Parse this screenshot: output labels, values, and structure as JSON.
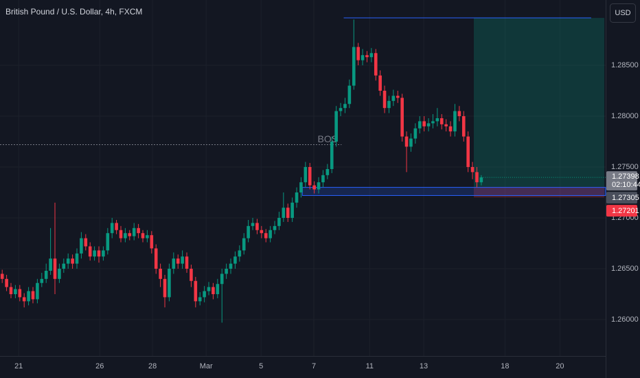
{
  "chart_data": {
    "type": "candlestick",
    "title": "British Pound / U.S. Dollar, 4h, FXCM",
    "currency": "USD",
    "up_color": "#089981",
    "down_color": "#f23645",
    "xlim": [
      -0.5,
      137.3
    ],
    "ylim": [
      1.25642,
      1.29142
    ],
    "grid": true,
    "yticks": [
      {
        "value": 1.26,
        "label": "1.26000"
      },
      {
        "value": 1.265,
        "label": "1.26500"
      },
      {
        "value": 1.27,
        "label": "1.27000"
      },
      {
        "value": 1.275,
        "label": "1.27500"
      },
      {
        "value": 1.28,
        "label": "1.28000"
      },
      {
        "value": 1.285,
        "label": "1.28500"
      }
    ],
    "xticks": [
      {
        "value": 3.75,
        "label": "21"
      },
      {
        "value": 22.2,
        "label": "26"
      },
      {
        "value": 34.2,
        "label": "28"
      },
      {
        "value": 46.4,
        "label": "Mar"
      },
      {
        "value": 58.9,
        "label": "5"
      },
      {
        "value": 70.9,
        "label": "7"
      },
      {
        "value": 83.6,
        "label": "11"
      },
      {
        "value": 95.9,
        "label": "13"
      },
      {
        "value": 114.4,
        "label": "18"
      },
      {
        "value": 126.9,
        "label": "20"
      }
    ],
    "open": [
      1.2645,
      1.264,
      1.2632,
      1.2625,
      1.263,
      1.2622,
      1.2618,
      1.2628,
      1.262,
      1.2636,
      1.264,
      1.2648,
      1.266,
      1.264,
      1.265,
      1.2655,
      1.266,
      1.2655,
      1.2665,
      1.268,
      1.2672,
      1.2662,
      1.2668,
      1.2662,
      1.2668,
      1.2685,
      1.2695,
      1.2688,
      1.268,
      1.2685,
      1.2682,
      1.269,
      1.2685,
      1.268,
      1.2683,
      1.267,
      1.265,
      1.264,
      1.2622,
      1.265,
      1.266,
      1.2655,
      1.2662,
      1.265,
      1.2638,
      1.2618,
      1.2622,
      1.2628,
      1.2632,
      1.2625,
      1.2635,
      1.2645,
      1.265,
      1.2655,
      1.2662,
      1.2668,
      1.268,
      1.2692,
      1.2695,
      1.2688,
      1.2685,
      1.268,
      1.2688,
      1.2692,
      1.27,
      1.271,
      1.27,
      1.2715,
      1.2725,
      1.2735,
      1.275,
      1.2732,
      1.2728,
      1.2735,
      1.2742,
      1.2748,
      1.2775,
      1.2805,
      1.2808,
      1.2812,
      1.283,
      1.2868,
      1.2855,
      1.286,
      1.2858,
      1.2862,
      1.284,
      1.2825,
      1.2808,
      1.2815,
      1.282,
      1.2818,
      1.278,
      1.277,
      1.2778,
      1.2788,
      1.2795,
      1.279,
      1.2793,
      1.2795,
      1.2798,
      1.2792,
      1.279,
      1.2785,
      1.2805,
      1.28,
      1.278,
      1.275,
      1.2745,
      1.2735
    ],
    "high": [
      1.2649,
      1.2644,
      1.2636,
      1.2634,
      1.2634,
      1.2626,
      1.2632,
      1.2632,
      1.264,
      1.2646,
      1.2655,
      1.269,
      1.2715,
      1.2655,
      1.266,
      1.2665,
      1.2664,
      1.267,
      1.2686,
      1.2684,
      1.2676,
      1.2672,
      1.2672,
      1.2672,
      1.269,
      1.27,
      1.2698,
      1.2692,
      1.269,
      1.2688,
      1.2695,
      1.2694,
      1.2688,
      1.2688,
      1.2687,
      1.2674,
      1.2655,
      1.2644,
      1.2655,
      1.2666,
      1.2664,
      1.2668,
      1.2666,
      1.2654,
      1.2642,
      1.2627,
      1.2633,
      1.2637,
      1.2636,
      1.264,
      1.265,
      1.2655,
      1.266,
      1.2667,
      1.2673,
      1.2685,
      1.2698,
      1.27,
      1.2699,
      1.2692,
      1.2689,
      1.2692,
      1.2697,
      1.2706,
      1.2725,
      1.2714,
      1.272,
      1.273,
      1.274,
      1.2755,
      1.2754,
      1.2736,
      1.274,
      1.2747,
      1.2753,
      1.278,
      1.281,
      1.2813,
      1.2818,
      1.2836,
      1.2895,
      1.2872,
      1.2866,
      1.2864,
      1.2867,
      1.2866,
      1.2845,
      1.283,
      1.282,
      1.2826,
      1.2825,
      1.2822,
      1.2785,
      1.2783,
      1.2793,
      1.28,
      1.28,
      1.2798,
      1.2802,
      1.2808,
      1.2802,
      1.2797,
      1.2795,
      1.2812,
      1.281,
      1.2805,
      1.2785,
      1.2755,
      1.275,
      1.2742
    ],
    "low": [
      1.2636,
      1.2628,
      1.2621,
      1.2621,
      1.2618,
      1.2612,
      1.2614,
      1.2616,
      1.2616,
      1.2632,
      1.2636,
      1.2644,
      1.2625,
      1.2636,
      1.2646,
      1.265,
      1.265,
      1.265,
      1.266,
      1.2668,
      1.2658,
      1.2658,
      1.2656,
      1.2658,
      1.2664,
      1.268,
      1.2684,
      1.2676,
      1.2676,
      1.2678,
      1.2678,
      1.268,
      1.2676,
      1.2676,
      1.2665,
      1.2645,
      1.2632,
      1.2612,
      1.2618,
      1.2645,
      1.265,
      1.265,
      1.2646,
      1.2632,
      1.2612,
      1.2614,
      1.2617,
      1.2624,
      1.262,
      1.2621,
      1.2597,
      1.264,
      1.2645,
      1.265,
      1.2657,
      1.2664,
      1.2676,
      1.2688,
      1.2684,
      1.268,
      1.2676,
      1.2676,
      1.2684,
      1.2688,
      1.2696,
      1.2696,
      1.2696,
      1.271,
      1.272,
      1.273,
      1.2728,
      1.2724,
      1.2724,
      1.273,
      1.2738,
      1.2744,
      1.277,
      1.28,
      1.2803,
      1.2808,
      1.2826,
      1.285,
      1.285,
      1.2853,
      1.2853,
      1.2835,
      1.282,
      1.2803,
      1.2803,
      1.281,
      1.2813,
      1.2775,
      1.2745,
      1.2765,
      1.2773,
      1.2783,
      1.2785,
      1.2785,
      1.2788,
      1.279,
      1.2787,
      1.2785,
      1.278,
      1.278,
      1.2795,
      1.2775,
      1.2745,
      1.2738,
      1.273,
      1.2732
    ],
    "close": [
      1.264,
      1.2632,
      1.2625,
      1.263,
      1.2622,
      1.2618,
      1.2628,
      1.262,
      1.2636,
      1.264,
      1.2648,
      1.266,
      1.264,
      1.265,
      1.2655,
      1.266,
      1.2655,
      1.2665,
      1.268,
      1.2672,
      1.2662,
      1.2668,
      1.2662,
      1.2668,
      1.2685,
      1.2695,
      1.2688,
      1.268,
      1.2685,
      1.2682,
      1.269,
      1.2685,
      1.268,
      1.2683,
      1.267,
      1.265,
      1.264,
      1.2622,
      1.265,
      1.266,
      1.2655,
      1.2662,
      1.265,
      1.2638,
      1.2618,
      1.2622,
      1.2628,
      1.2632,
      1.2625,
      1.2635,
      1.2645,
      1.265,
      1.2655,
      1.2662,
      1.2668,
      1.268,
      1.2692,
      1.2695,
      1.2688,
      1.2685,
      1.268,
      1.2688,
      1.2692,
      1.27,
      1.271,
      1.27,
      1.2715,
      1.2725,
      1.2735,
      1.275,
      1.2732,
      1.2728,
      1.2735,
      1.2742,
      1.2748,
      1.2775,
      1.2805,
      1.2808,
      1.2812,
      1.283,
      1.2868,
      1.2855,
      1.286,
      1.2858,
      1.2862,
      1.284,
      1.2825,
      1.2808,
      1.2815,
      1.282,
      1.2818,
      1.278,
      1.277,
      1.2778,
      1.2788,
      1.2795,
      1.279,
      1.2793,
      1.2795,
      1.2798,
      1.2792,
      1.279,
      1.2785,
      1.2805,
      1.28,
      1.278,
      1.275,
      1.2745,
      1.2735,
      1.27398
    ],
    "last_label": {
      "label": "1.27398",
      "countdown": "02:10:44"
    },
    "bos": {
      "label": "BOS",
      "price": 1.2772,
      "start": -0.5,
      "end": 77.2
    },
    "high_line": {
      "price": 1.28966,
      "start": 77.7,
      "end": 134
    },
    "zone": {
      "top": 1.273,
      "bottom": 1.2722,
      "start": 68.3,
      "end": 137.3
    },
    "position": {
      "start": 107.3,
      "end": 137,
      "target": 1.28966,
      "entry": {
        "value": 1.27305,
        "label": "1.27305"
      },
      "stop": {
        "value": 1.27201,
        "label": "1.27201"
      }
    }
  }
}
